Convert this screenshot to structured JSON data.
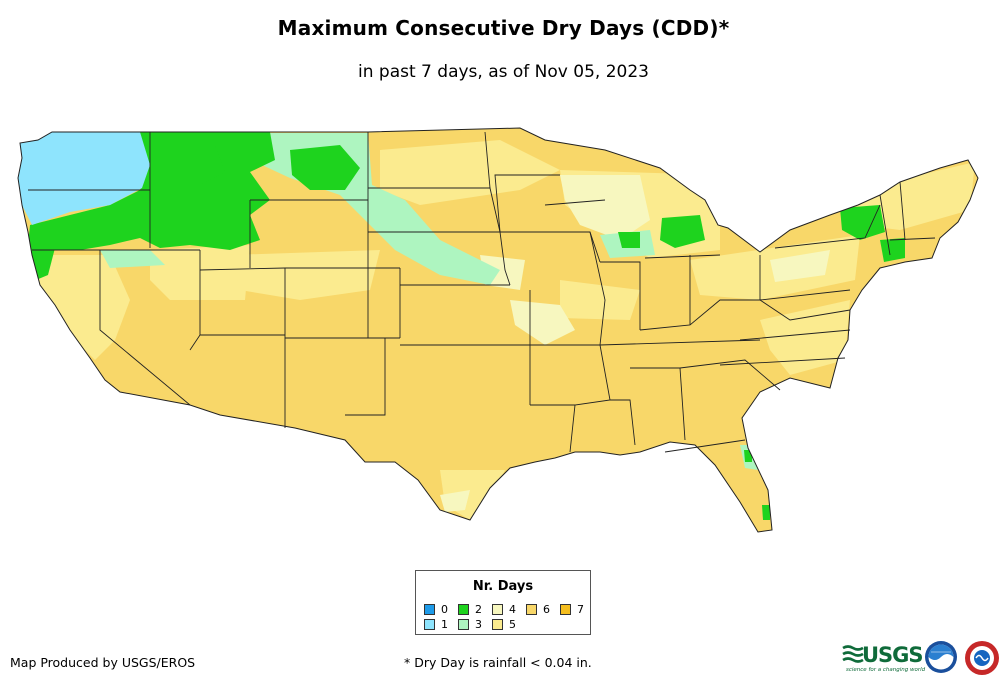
{
  "title": "Maximum Consecutive Dry Days (CDD)*",
  "subtitle": "in past 7 days, as of Nov 05, 2023",
  "legend": {
    "title": "Nr. Days",
    "items": [
      {
        "label": "0",
        "color": "#1e9be9"
      },
      {
        "label": "1",
        "color": "#8ee4fd"
      },
      {
        "label": "2",
        "color": "#1ed31e"
      },
      {
        "label": "3",
        "color": "#aef5c0"
      },
      {
        "label": "4",
        "color": "#f7f7bf"
      },
      {
        "label": "5",
        "color": "#fbeb8f"
      },
      {
        "label": "6",
        "color": "#f8d769"
      },
      {
        "label": "7",
        "color": "#f5be1e"
      }
    ]
  },
  "footer": {
    "producer": "Map Produced by USGS/EROS",
    "note": "* Dry Day is rainfall < 0.04 in."
  },
  "logos": {
    "usgs": "USGS",
    "usgs_tagline": "science for a changing world",
    "noaa_icon": "noaa-logo-icon",
    "nws_icon": "nws-logo-icon"
  }
}
